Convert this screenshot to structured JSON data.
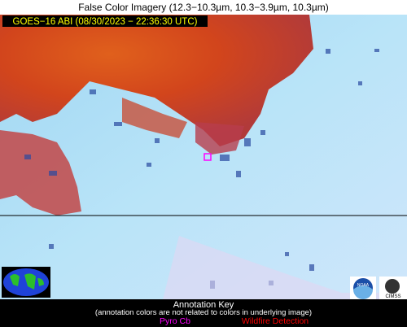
{
  "header": {
    "title": "False Color Imagery (12.3−10.3µm, 10.3−3.9µm, 10.3µm)"
  },
  "image": {
    "label": "GOES−16 ABI (08/30/2023 − 22:36:30 UTC)"
  },
  "key": {
    "title": "Annotation Key",
    "note": "(annotation colors are not related to colors in underlying image)",
    "items": [
      {
        "label": "Pyro Cb",
        "color": "#ff00ff"
      },
      {
        "label": "Wildfire Detection",
        "color": "#ff0000"
      }
    ]
  },
  "logos": {
    "left": "NOAA",
    "right": "CIMSS"
  }
}
